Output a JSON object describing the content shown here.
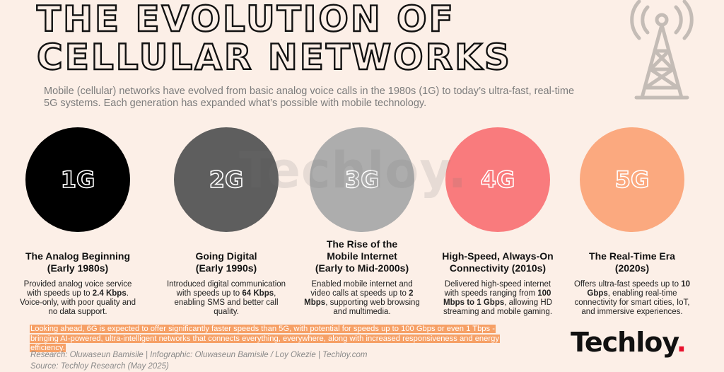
{
  "title": {
    "line1": "THE EVOLUTION OF",
    "line2": "CELLULAR NETWORKS"
  },
  "subtitle": "Mobile (cellular) networks have evolved from basic analog voice calls in the 1980s (1G) to today’s ultra-fast, real-time 5G systems. Each generation has expanded what’s possible with mobile technology.",
  "watermark": "Techloy.",
  "colors": {
    "background": "#fcefe7",
    "1G": "#000000",
    "2G": "#5e5e5e",
    "3G": "#adadad",
    "4G": "#f97b7d",
    "5G": "#fba97f",
    "highlight": "#f6a066",
    "logo_dot": "#e8112d"
  },
  "generations": [
    {
      "label": "1G",
      "title_line1": "The Analog Beginning",
      "title_line2": "(Early 1980s)",
      "title_line3": "",
      "desc_pre": "Provided analog voice service with speeds up to ",
      "desc_bold": "2.4 Kbps",
      "desc_post": ". Voice-only, with poor quality and no data support."
    },
    {
      "label": "2G",
      "title_line1": "Going Digital",
      "title_line2": "(Early 1990s)",
      "title_line3": "",
      "desc_pre": "Introduced digital communication with speeds up to ",
      "desc_bold": "64 Kbps",
      "desc_post": ", enabling SMS and better call quality."
    },
    {
      "label": "3G",
      "title_line1": "The Rise of the",
      "title_line2": "Mobile Internet",
      "title_line3": "(Early to Mid-2000s)",
      "desc_pre": "Enabled mobile internet and video calls at speeds up to ",
      "desc_bold": "2 Mbps",
      "desc_post": ", supporting web browsing and multimedia."
    },
    {
      "label": "4G",
      "title_line1": "High-Speed, Always-On",
      "title_line2": "Connectivity (2010s)",
      "title_line3": "",
      "desc_pre": "Delivered high-speed internet with speeds ranging from ",
      "desc_bold": "100 Mbps to 1 Gbps",
      "desc_post": ", allowing HD streaming and mobile gaming."
    },
    {
      "label": "5G",
      "title_line1": "The Real-Time Era",
      "title_line2": "(2020s)",
      "title_line3": "",
      "desc_pre": "Offers ultra-fast speeds up to ",
      "desc_bold": "10 Gbps",
      "desc_post": ", enabling real-time connectivity for smart cities, IoT, and immersive experiences."
    }
  ],
  "lookahead": "Looking ahead, 6G is expected to offer significantly faster speeds than 5G, with potential for speeds up to 100 Gbps or even 1 Tbps - bringing AI-powered, ultra-intelligent networks that connects everything, everywhere, along with increased responsiveness and energy efficiency.",
  "credits": {
    "research": "Research: Oluwaseun Bamisile | Infographic: Oluwaseun Bamisile / Loy Okezie | Techloy.com",
    "source": "Source: Techloy Research (May 2025)"
  },
  "logo": {
    "text": "Techloy",
    "dot": "."
  },
  "icons": {
    "tower": "cell-tower-icon"
  }
}
